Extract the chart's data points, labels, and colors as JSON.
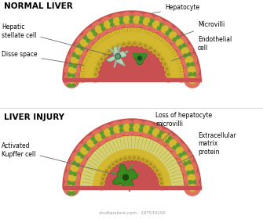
{
  "bg_color": "#ffffff",
  "title1": "NORMAL LIVER",
  "title2": "LIVER INJURY",
  "watermark": "shutterstock.com · 197534150",
  "outer_red": "#d06050",
  "mid_red": "#c85050",
  "disse_yellow": "#d4b830",
  "sinusoid_red": "#c04848",
  "cell_light": "#e08070",
  "nucleus_yellow": "#d4b830",
  "green_dot": "#5a9a30",
  "endo_yellow": "#d4b830",
  "stellate_light": "#c8e8c0",
  "stellate_dark": "#4a8a3a",
  "kupffer_green": "#3a8a2a",
  "ecm_yellow": "#c8c040"
}
